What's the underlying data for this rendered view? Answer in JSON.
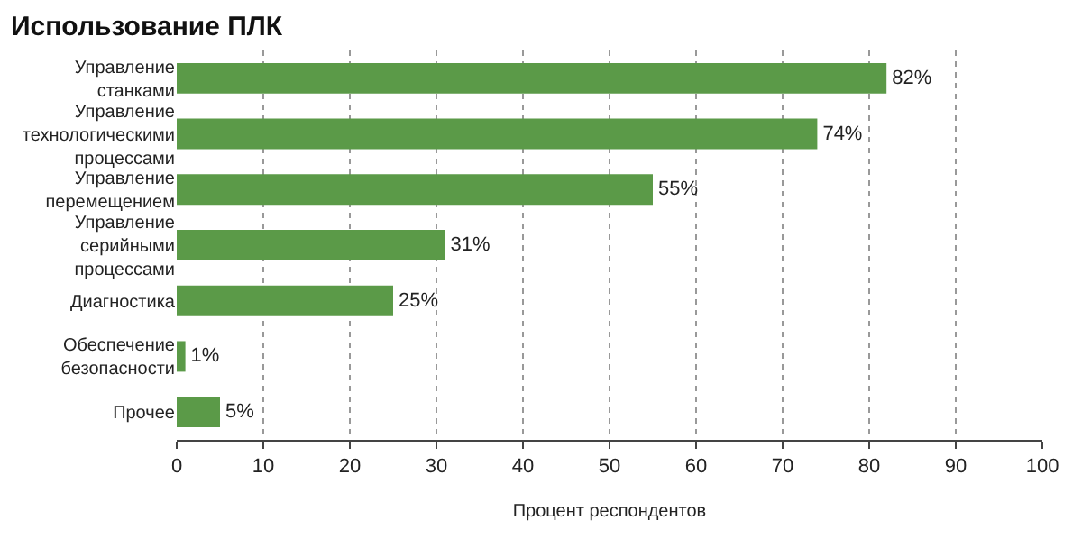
{
  "chart_data": {
    "type": "bar",
    "orientation": "horizontal",
    "title": "Использование ПЛК",
    "categories": [
      "Управление станками",
      "Управление технологическими процессами",
      "Управление перемещением",
      "Управление серийными процессами",
      "Диагностика",
      "Обеспечение безопасности",
      "Прочее"
    ],
    "values": [
      82,
      74,
      55,
      31,
      25,
      1,
      5
    ],
    "value_labels": [
      "82%",
      "74%",
      "55%",
      "31%",
      "25%",
      "1%",
      "5%"
    ],
    "color": "#5b9a48",
    "xlabel": "Процент респондентов",
    "xlim": [
      0,
      100
    ],
    "xticks": [
      0,
      10,
      20,
      30,
      40,
      50,
      60,
      70,
      80,
      90,
      100
    ],
    "grid": "x",
    "legend": false
  }
}
